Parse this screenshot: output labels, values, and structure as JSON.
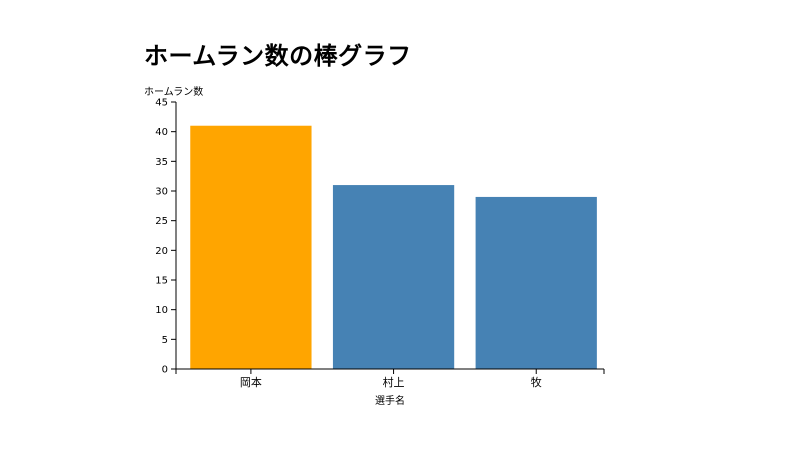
{
  "chart_data": {
    "type": "bar",
    "title": "ホームラン数の棒グラフ",
    "xlabel": "選手名",
    "ylabel": "ホームラン数",
    "categories": [
      "岡本",
      "村上",
      "牧"
    ],
    "values": [
      41,
      31,
      29
    ],
    "bar_colors": [
      "#ffa500",
      "#4682b4",
      "#4682b4"
    ],
    "ylim": [
      0,
      45
    ],
    "yticks": [
      0,
      5,
      10,
      15,
      20,
      25,
      30,
      35,
      40,
      45
    ],
    "grid": false,
    "legend": "none"
  }
}
